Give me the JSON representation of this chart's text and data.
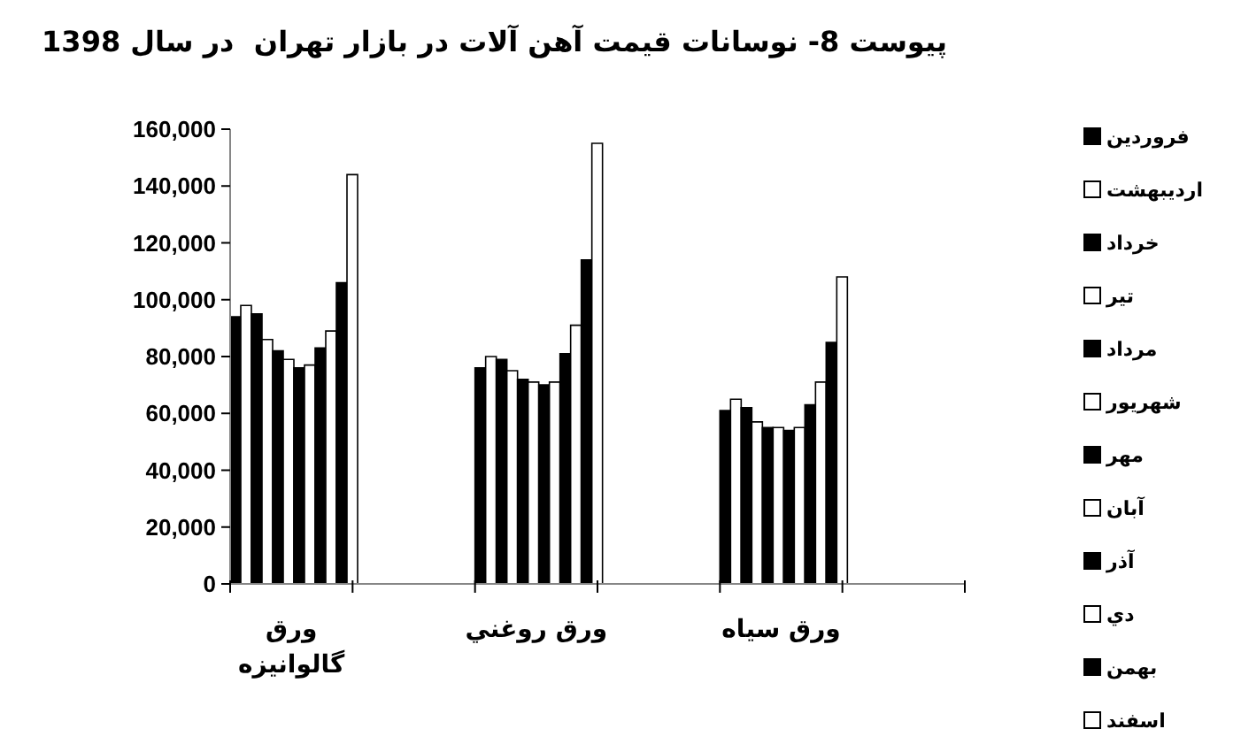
{
  "chart_data": {
    "type": "bar",
    "title": "پیوست 8- نوسانات قیمت آهن آلات در بازار تهران  در سال 1398",
    "categories": [
      "ورق گالوانیزه",
      null,
      "ورق روغني",
      null,
      "ورق سیاه",
      null
    ],
    "series": [
      {
        "name": "فروردین",
        "color": "#000000",
        "values": [
          94000,
          null,
          76000,
          null,
          61000,
          null
        ]
      },
      {
        "name": "اردیبهشت",
        "color": "#ffffff",
        "values": [
          98000,
          null,
          80000,
          null,
          65000,
          null
        ]
      },
      {
        "name": "خرداد",
        "color": "#000000",
        "values": [
          95000,
          null,
          79000,
          null,
          62000,
          null
        ]
      },
      {
        "name": "تیر",
        "color": "#ffffff",
        "values": [
          86000,
          null,
          75000,
          null,
          57000,
          null
        ]
      },
      {
        "name": "مرداد",
        "color": "#000000",
        "values": [
          82000,
          null,
          72000,
          null,
          55000,
          null
        ]
      },
      {
        "name": "شهریور",
        "color": "#ffffff",
        "values": [
          79000,
          null,
          71000,
          null,
          55000,
          null
        ]
      },
      {
        "name": "مهر",
        "color": "#000000",
        "values": [
          76000,
          null,
          70000,
          null,
          54000,
          null
        ]
      },
      {
        "name": "آبان",
        "color": "#ffffff",
        "values": [
          77000,
          null,
          71000,
          null,
          55000,
          null
        ]
      },
      {
        "name": "آذر",
        "color": "#000000",
        "values": [
          83000,
          null,
          81000,
          null,
          63000,
          null
        ]
      },
      {
        "name": "دي",
        "color": "#ffffff",
        "values": [
          89000,
          null,
          91000,
          null,
          71000,
          null
        ]
      },
      {
        "name": "بهمن",
        "color": "#000000",
        "values": [
          106000,
          null,
          114000,
          null,
          85000,
          null
        ]
      },
      {
        "name": "اسفند",
        "color": "#ffffff",
        "values": [
          144000,
          null,
          155000,
          null,
          108000,
          null
        ]
      }
    ],
    "ylim": [
      0,
      160000
    ],
    "yticks": [
      {
        "value": 0,
        "label": "0"
      },
      {
        "value": 20000,
        "label": "20,000"
      },
      {
        "value": 40000,
        "label": "40,000"
      },
      {
        "value": 60000,
        "label": "60,000"
      },
      {
        "value": 80000,
        "label": "80,000"
      },
      {
        "value": 100000,
        "label": "100,000"
      },
      {
        "value": 120000,
        "label": "120,000"
      },
      {
        "value": 140000,
        "label": "140,000"
      },
      {
        "value": 160000,
        "label": "160,000"
      }
    ],
    "legend": "right"
  }
}
